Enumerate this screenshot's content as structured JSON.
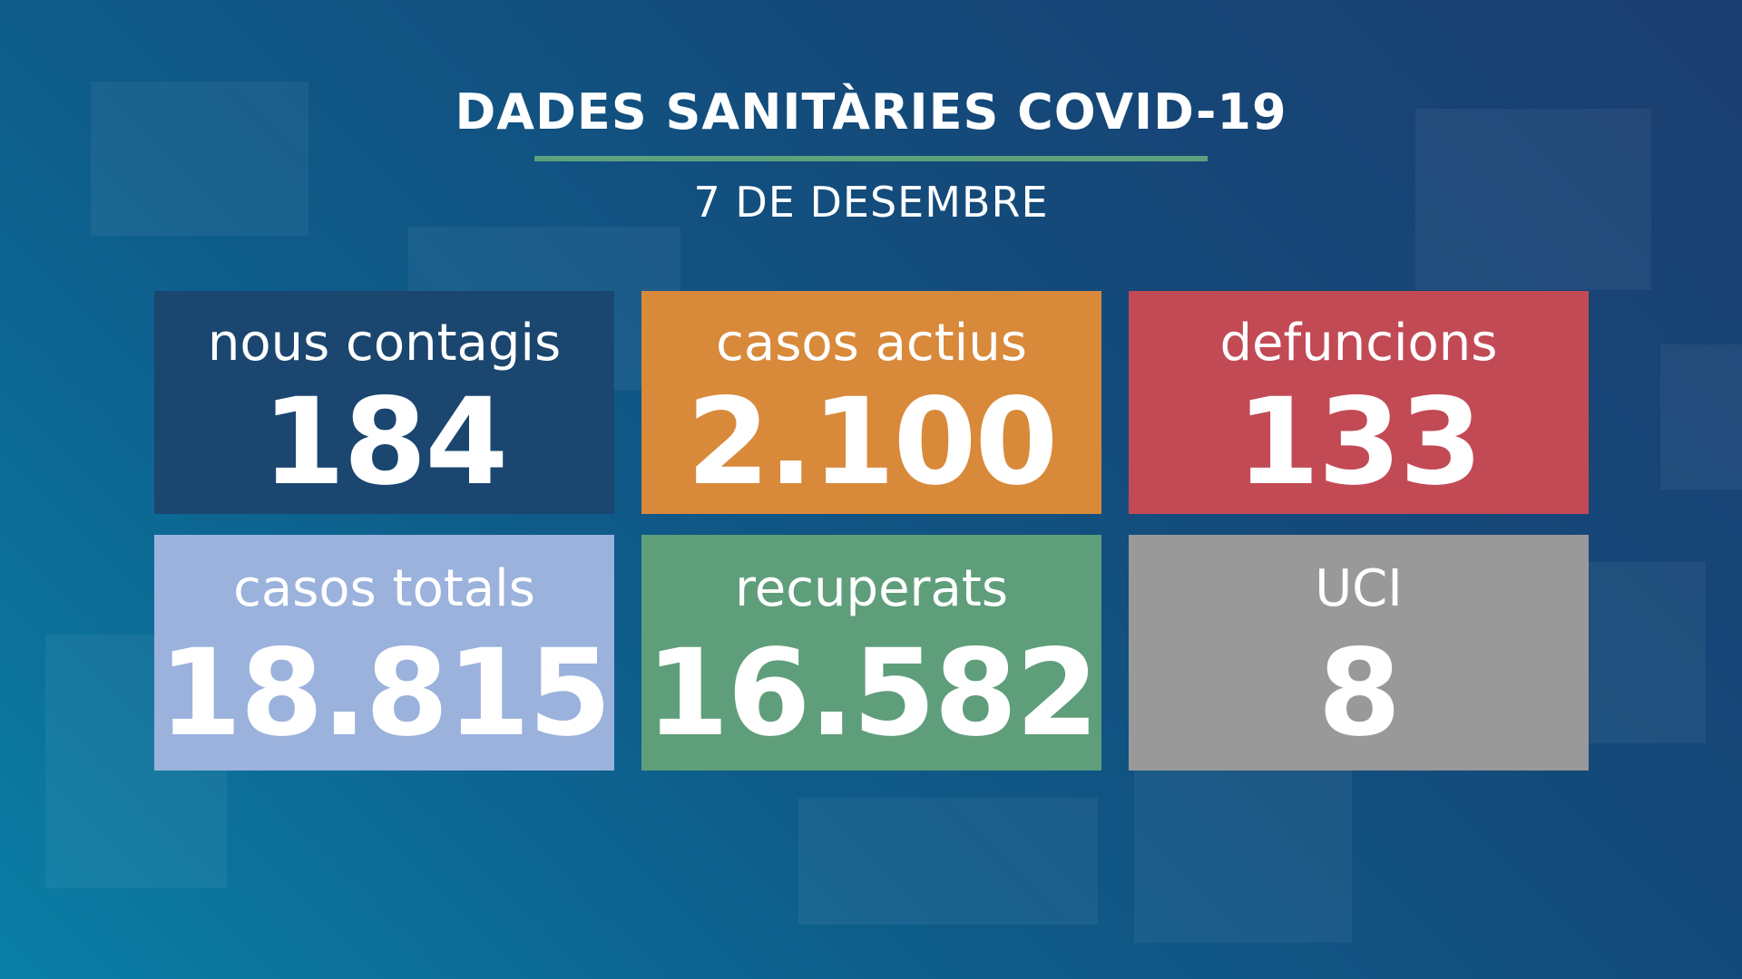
{
  "header": {
    "title": "DADES SANITÀRIES COVID-19",
    "date": "7 DE DESEMBRE"
  },
  "tiles": [
    {
      "label": "nous contagis",
      "value": "184",
      "color": "#1a4670"
    },
    {
      "label": "casos actius",
      "value": "2.100",
      "color": "#d8893a"
    },
    {
      "label": "defuncions",
      "value": "133",
      "color": "#c24a55"
    },
    {
      "label": "casos totals",
      "value": "18.815",
      "color": "#9ab2dc"
    },
    {
      "label": "recuperats",
      "value": "16.582",
      "color": "#5f9e7a"
    },
    {
      "label": "UCI",
      "value": "8",
      "color": "#999999"
    }
  ],
  "colors": {
    "accent_rule": "#5ea27d"
  }
}
